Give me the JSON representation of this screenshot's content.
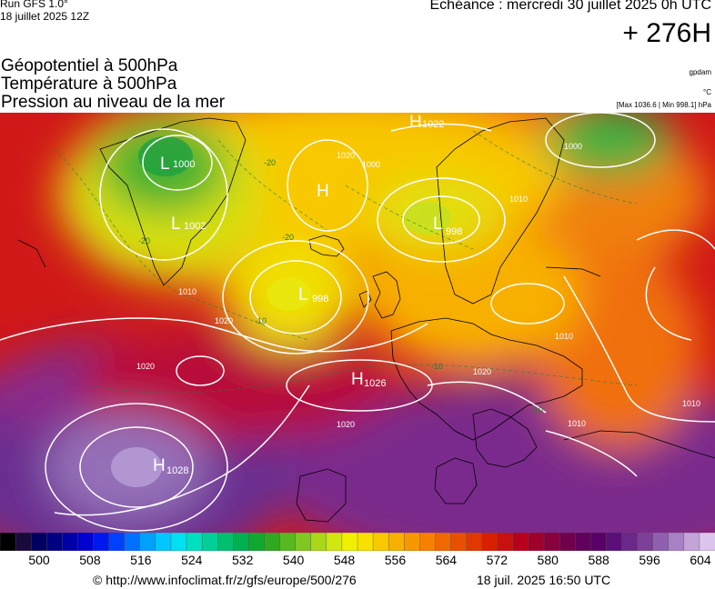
{
  "header": {
    "run_model": "Run GFS 1.0°",
    "run_date": "18 juillet 2025 12Z",
    "echeance": "Echéance : mercredi 30 juillet 2025 0h UTC",
    "lead_time": "+ 276H"
  },
  "titles": {
    "geopotential": "Géopotentiel à 500hPa",
    "temperature": "Température à 500hPa",
    "pressure": "Pression au niveau de la mer"
  },
  "units": {
    "geopotential": "gpdam",
    "temperature": "°C",
    "pressure": "[Max 1036.6 | Min 998.1] hPa"
  },
  "map": {
    "pressure_centers": [
      {
        "type": "L",
        "value": "1000"
      },
      {
        "type": "L",
        "value": "1002"
      },
      {
        "type": "H",
        "value": ""
      },
      {
        "type": "H",
        "value": "1022"
      },
      {
        "type": "L",
        "value": "998"
      },
      {
        "type": "L",
        "value": "998"
      },
      {
        "type": "H",
        "value": "1026"
      },
      {
        "type": "H",
        "value": "1028"
      }
    ],
    "isobar_labels": [
      "1000",
      "1020",
      "1010",
      "1020",
      "1020",
      "1020",
      "1010",
      "1010",
      "1020",
      "1010",
      "1010",
      "1000"
    ],
    "temperature_labels": [
      "-20",
      "-20",
      "-20",
      "-10",
      "-10",
      "-10"
    ]
  },
  "colorbar": {
    "ticks": [
      "500",
      "508",
      "516",
      "524",
      "532",
      "540",
      "548",
      "556",
      "564",
      "572",
      "580",
      "588",
      "596",
      "604"
    ],
    "colors": [
      "#000000",
      "#1a0a3c",
      "#000060",
      "#000080",
      "#0000a8",
      "#0000d0",
      "#0018f0",
      "#0040ff",
      "#0070ff",
      "#00a0ff",
      "#00c8ff",
      "#00e0f0",
      "#00e0c0",
      "#00d098",
      "#00c070",
      "#00b050",
      "#10a830",
      "#30a820",
      "#58b820",
      "#80c820",
      "#a8d818",
      "#d0e810",
      "#f0f000",
      "#f8e000",
      "#f8c800",
      "#f8b000",
      "#f89800",
      "#f88000",
      "#f06800",
      "#e85000",
      "#e03800",
      "#d82000",
      "#c81010",
      "#b8001c",
      "#a0002c",
      "#88003c",
      "#70004c",
      "#60005c",
      "#580068",
      "#5a1078",
      "#6a2888",
      "#7c4098",
      "#9060b0",
      "#a880c4",
      "#c4a4d8",
      "#dcc4ec"
    ]
  },
  "footer": {
    "credit": "© http://www.infoclimat.fr/z/gfs/europe/500/276",
    "timestamp": "18 juil. 2025 16:50 UTC"
  }
}
